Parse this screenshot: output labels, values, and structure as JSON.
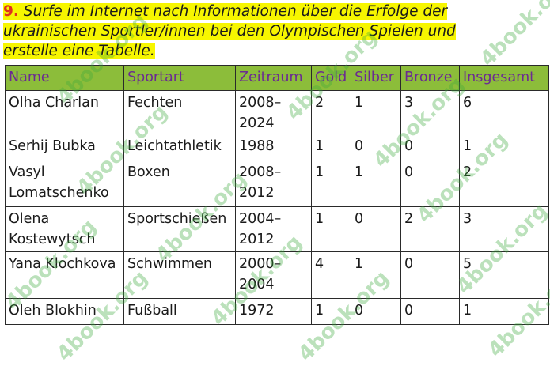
{
  "task": {
    "number": "9.",
    "text": "Surfe im Internet nach Informationen über die Erfolge der ukrainischen Sportler/innen bei den Olympischen Spielen und erstelle eine Tabelle."
  },
  "table": {
    "headers": [
      "Name",
      "Sportart",
      "Zeitraum",
      "Gold",
      "Silber",
      "Bronze",
      "Insgesamt"
    ],
    "rows": [
      {
        "name": "Olha Charlan",
        "sport": "Fechten",
        "period": "2008–2024",
        "gold": "2",
        "silver": "1",
        "bronze": "3",
        "total": "6"
      },
      {
        "name": "Serhij Bubka",
        "sport": "Leichtathletik",
        "period": "1988",
        "gold": "1",
        "silver": "0",
        "bronze": "0",
        "total": "1"
      },
      {
        "name": "Vasyl Lomatschenko",
        "sport": "Boxen",
        "period": "2008–2012",
        "gold": "1",
        "silver": "1",
        "bronze": "0",
        "total": "2"
      },
      {
        "name": "Olena Kostewytsch",
        "sport": "Sportschießen",
        "period": "2004–2012",
        "gold": "1",
        "silver": "0",
        "bronze": "2",
        "total": "3"
      },
      {
        "name": "Yana Klochkova",
        "sport": "Schwimmen",
        "period": "2000–2004",
        "gold": "4",
        "silver": "1",
        "bronze": "0",
        "total": "5"
      },
      {
        "name": "Oleh Blokhin",
        "sport": "Fußball",
        "period": "1972",
        "gold": "1",
        "silver": "0",
        "bronze": "0",
        "total": "1"
      }
    ]
  },
  "watermark": "4book.org",
  "colors": {
    "highlight": "#f7f600",
    "task_number": "#e0301e",
    "header_bg": "#8cbd3a",
    "header_text": "#6b2a92",
    "watermark": "#3caa3c"
  }
}
